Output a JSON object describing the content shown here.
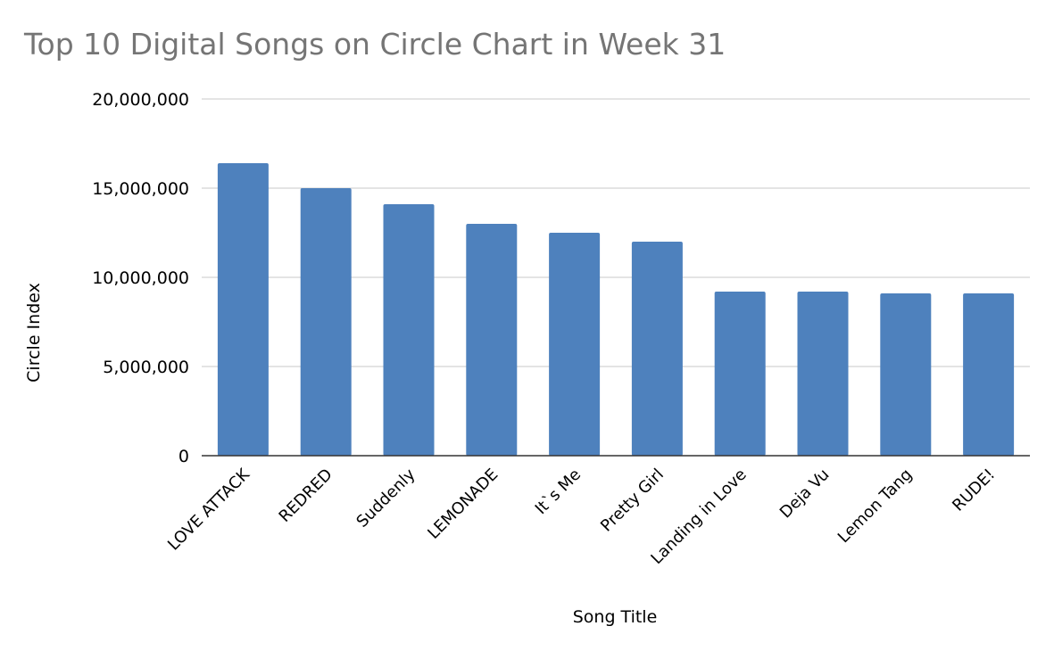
{
  "chart_data": {
    "type": "bar",
    "title": "Top 10 Digital Songs on Circle Chart in Week 31",
    "xlabel": "Song Title",
    "ylabel": "Circle Index",
    "categories": [
      "LOVE ATTACK",
      "REDRED",
      "Suddenly",
      "LEMONADE",
      "It`s Me",
      "Pretty Girl",
      "Landing in Love",
      "Deja Vu",
      "Lemon Tang",
      "RUDE!"
    ],
    "values": [
      16400000,
      15000000,
      14100000,
      13000000,
      12500000,
      12000000,
      9200000,
      9200000,
      9100000,
      9100000
    ],
    "ylim": [
      0,
      20000000
    ],
    "yticks": [
      "0",
      "5,000,000",
      "10,000,000",
      "15,000,000",
      "20,000,000"
    ],
    "ytick_values": [
      0,
      5000000,
      10000000,
      15000000,
      20000000
    ],
    "grid": true,
    "colors": {
      "bar": "#4e81bd",
      "grid": "#c8c8c8",
      "axis": "#333333",
      "title": "#757575"
    }
  }
}
